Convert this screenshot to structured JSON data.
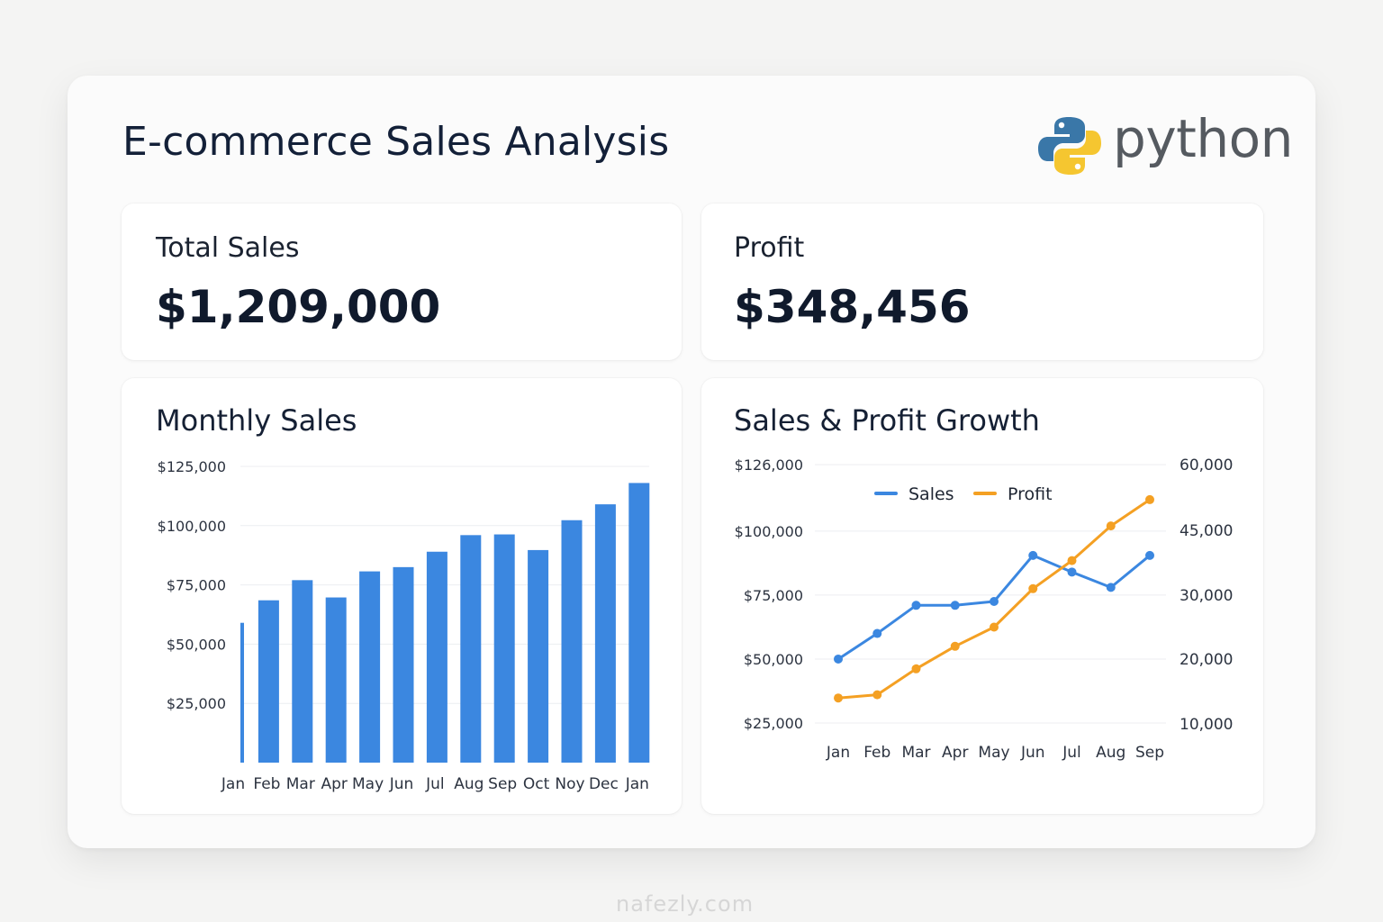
{
  "title": "E-commerce Sales Analysis",
  "logo": {
    "name": "python-logo",
    "text": "python"
  },
  "kpis": {
    "total_sales": {
      "label": "Total Sales",
      "value": "$1,209,000"
    },
    "profit": {
      "label": "Profit",
      "value": "$348,456"
    }
  },
  "watermark": "nafezly.com",
  "colors": {
    "sales_blue": "#3b87e0",
    "profit_orange": "#f4a023",
    "title_dark": "#132038"
  },
  "chart_data": [
    {
      "type": "bar",
      "title": "Monthly Sales",
      "categories": [
        "Jan",
        "Feb",
        "Mar",
        "Apr",
        "May",
        "Jun",
        "Jul",
        "Aug",
        "Sep",
        "Oct",
        "Noy",
        "Dec",
        "Jan"
      ],
      "values": [
        59000,
        68500,
        77000,
        69700,
        80700,
        82500,
        89000,
        96000,
        96300,
        89700,
        102300,
        109000,
        118000
      ],
      "yticks": [
        25000,
        50000,
        75000,
        100000,
        125000
      ],
      "ytick_labels": [
        "$25,000",
        "$50,000",
        "$75,000",
        "$100,000",
        "$125,000"
      ],
      "ylim": [
        0,
        125000
      ],
      "grid": true,
      "xlabel": "",
      "ylabel": ""
    },
    {
      "type": "line",
      "title": "Sales & Profit Growth",
      "x": [
        "Jan",
        "Feb",
        "Mar",
        "Apr",
        "May",
        "Jun",
        "Jul",
        "Aug",
        "Sep"
      ],
      "series": [
        {
          "name": "Sales",
          "axis": "left",
          "color": "#3b87e0",
          "values": [
            50000,
            60000,
            71000,
            71000,
            72500,
            90500,
            84000,
            78000,
            90500
          ]
        },
        {
          "name": "Profit",
          "axis": "right",
          "color": "#f4a023",
          "values": [
            14000,
            14500,
            18500,
            22000,
            25000,
            31500,
            38000,
            46000,
            52000
          ]
        }
      ],
      "left_axis": {
        "ticks": [
          25000,
          50000,
          75000,
          100000,
          126000
        ],
        "tick_labels": [
          "$25,000",
          "$50,000",
          "$75,000",
          "$100,000",
          "$126,000"
        ]
      },
      "right_axis": {
        "ticks": [
          10000,
          20000,
          30000,
          45000,
          60000
        ],
        "tick_labels": [
          "10,000",
          "20,000",
          "30,000",
          "45,000",
          "60,000"
        ]
      },
      "legend": "top-center",
      "grid": true
    }
  ]
}
